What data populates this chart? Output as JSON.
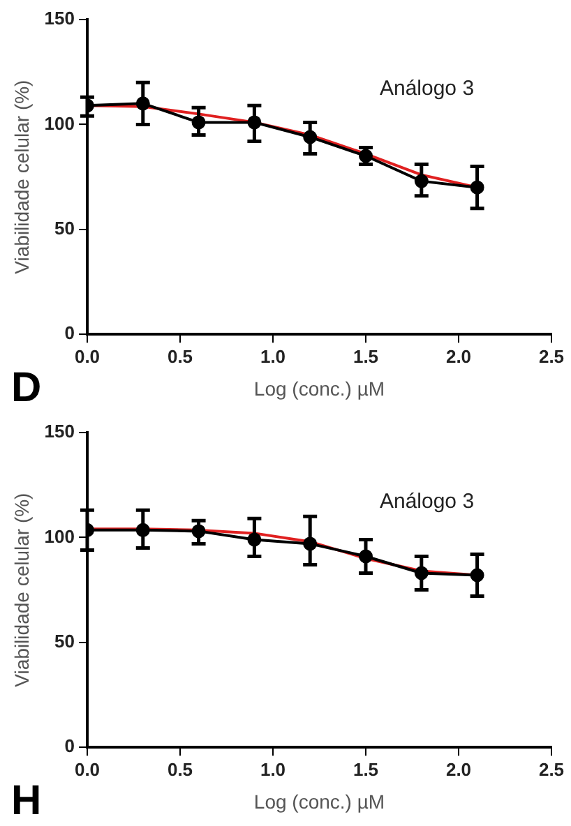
{
  "chart_data": [
    {
      "type": "line",
      "xlabel": "Log (conc.) µM",
      "ylabel": "Viabilidade celular (%)",
      "annotations": [
        "Análogo 3",
        "D"
      ],
      "xlim": [
        0,
        2.5
      ],
      "xticks": [
        {
          "value": 0,
          "label": "0.0"
        },
        {
          "value": 0.5,
          "label": "0.5"
        },
        {
          "value": 1,
          "label": "1.0"
        },
        {
          "value": 1.5,
          "label": "1.5"
        },
        {
          "value": 2,
          "label": "2.0"
        },
        {
          "value": 2.5,
          "label": "2.5"
        }
      ],
      "ylim": [
        0,
        150
      ],
      "yticks": [
        0,
        50,
        100,
        150
      ],
      "grid": false,
      "legend": false,
      "marker": "circle",
      "line_style": "solid",
      "series": [
        {
          "color": "#000000",
          "x": [
            0,
            0.3,
            0.6,
            0.9,
            1.2,
            1.5,
            1.8,
            2.1
          ],
          "values": [
            109,
            110,
            101,
            101,
            94,
            85,
            73,
            70
          ],
          "errors": [
            [
              104,
              113
            ],
            [
              100,
              120
            ],
            [
              95,
              108
            ],
            [
              92,
              109
            ],
            [
              86,
              101
            ],
            [
              81,
              89
            ],
            [
              66,
              81
            ],
            [
              60,
              80
            ]
          ]
        },
        {
          "type": "line",
          "marker": "none",
          "color": "#e02020",
          "x": [
            0,
            0.3,
            0.6,
            0.9,
            1.2,
            1.5,
            1.8,
            2.1
          ],
          "values": [
            109,
            108.5,
            105,
            101,
            95,
            86,
            76,
            70
          ]
        }
      ]
    },
    {
      "type": "line",
      "xlabel": "Log (conc.) µM",
      "ylabel": "Viabilidade celular (%)",
      "annotations": [
        "Análogo 3",
        "H"
      ],
      "xlim": [
        0,
        2.5
      ],
      "xticks": [
        {
          "value": 0,
          "label": "0.0"
        },
        {
          "value": 0.5,
          "label": "0.5"
        },
        {
          "value": 1,
          "label": "1.0"
        },
        {
          "value": 1.5,
          "label": "1.5"
        },
        {
          "value": 2,
          "label": "2.0"
        },
        {
          "value": 2.5,
          "label": "2.5"
        }
      ],
      "ylim": [
        0,
        150
      ],
      "yticks": [
        0,
        50,
        100,
        150
      ],
      "grid": false,
      "legend": false,
      "marker": "circle",
      "line_style": "solid",
      "series": [
        {
          "color": "#000000",
          "x": [
            0,
            0.3,
            0.6,
            0.9,
            1.2,
            1.5,
            1.8,
            2.1
          ],
          "values": [
            103.5,
            103.5,
            103,
            99,
            97,
            91,
            83,
            82
          ],
          "errors": [
            [
              94,
              113
            ],
            [
              95,
              113
            ],
            [
              97,
              108
            ],
            [
              91,
              109
            ],
            [
              87,
              110
            ],
            [
              83,
              99
            ],
            [
              75,
              91
            ],
            [
              72,
              92
            ]
          ]
        },
        {
          "type": "line",
          "marker": "none",
          "color": "#e02020",
          "x": [
            0,
            0.3,
            0.6,
            0.9,
            1.2,
            1.5,
            1.8,
            2.1
          ],
          "values": [
            104,
            104,
            103.5,
            102,
            98,
            90,
            84,
            82
          ]
        }
      ]
    }
  ]
}
